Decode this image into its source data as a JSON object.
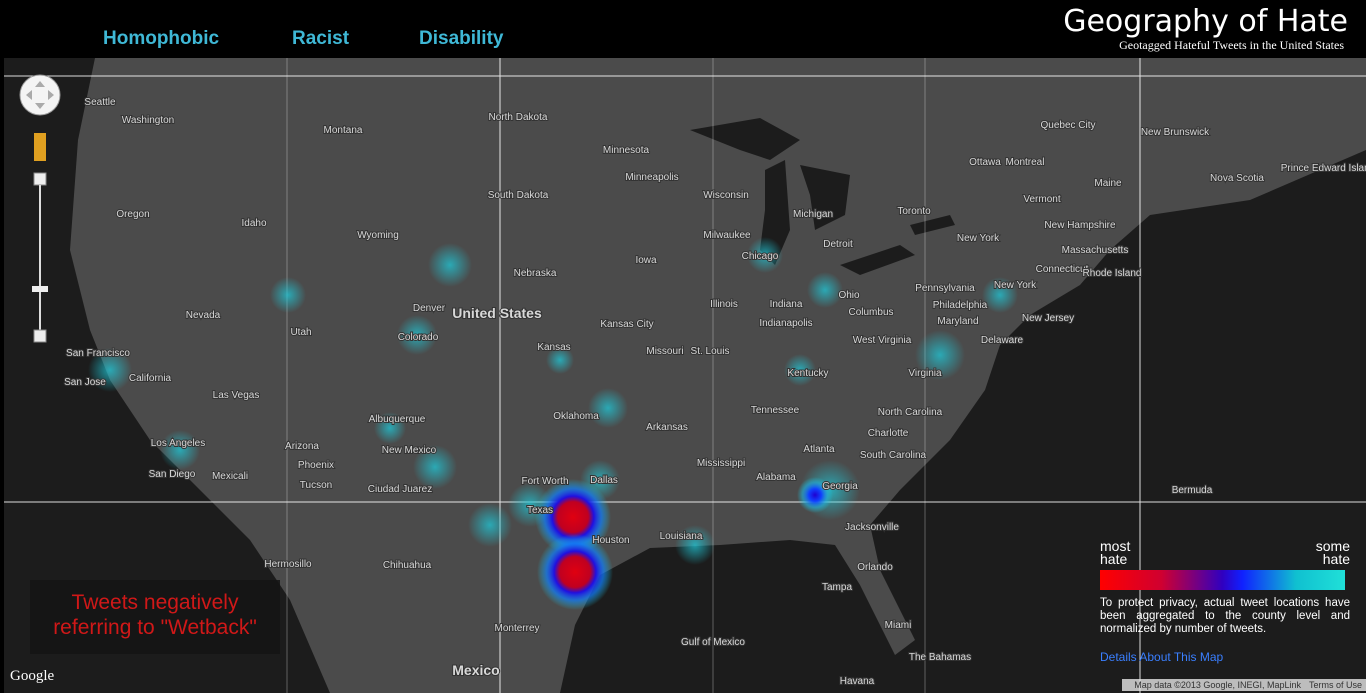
{
  "nav": {
    "tabs": [
      "Homophobic",
      "Racist",
      "Disability"
    ]
  },
  "header": {
    "title": "Geography of Hate",
    "subtitle": "Geotagged Hateful Tweets in the United States"
  },
  "map": {
    "labels": [
      "Seattle",
      "Washington",
      "Montana",
      "North Dakota",
      "Minnesota",
      "Oregon",
      "Idaho",
      "Wyoming",
      "South Dakota",
      "Nebraska",
      "Iowa",
      "Wisconsin",
      "Michigan",
      "Nevada",
      "Utah",
      "Colorado",
      "United States",
      "Kansas",
      "Illinois",
      "Indiana",
      "Ohio",
      "California",
      "Missouri",
      "Kentucky",
      "Virginia",
      "Las Vegas",
      "Arizona",
      "New Mexico",
      "Oklahoma",
      "Arkansas",
      "Tennessee",
      "North Carolina",
      "Los Angeles",
      "Phoenix",
      "Tucson",
      "Texas",
      "Dallas",
      "Fort Worth",
      "Houston",
      "Mississippi",
      "Alabama",
      "Georgia",
      "South Carolina",
      "Louisiana",
      "Jacksonville",
      "Orlando",
      "Tampa",
      "Miami",
      "Chihuahua",
      "Monterrey",
      "Mexico",
      "Gulf of Mexico",
      "The Bahamas",
      "Havana",
      "Bermuda",
      "Toronto",
      "Ottawa",
      "Montreal",
      "Quebec City",
      "New Brunswick",
      "Nova Scotia",
      "Maine",
      "Vermont",
      "New Hampshire",
      "Massachusetts",
      "New York",
      "New York",
      "Pennsylvania",
      "Philadelphia",
      "Maryland",
      "New Jersey",
      "Delaware",
      "Chicago",
      "Detroit",
      "Milwaukee",
      "Minneapolis",
      "Denver",
      "Albuquerque",
      "San Francisco",
      "San Jose",
      "San Diego",
      "Mexicali",
      "Kansas City",
      "St. Louis",
      "Atlanta",
      "Charlotte",
      "Indianapolis",
      "Columbus",
      "Connecticut",
      "Rhode Island",
      "Ciudad Juarez",
      "Hermosillo",
      "Prince Edward Island",
      "West Virginia"
    ],
    "caption": "Tweets negatively referring to \"Wetback\"",
    "attribution": "Google",
    "footer": [
      "Map data ©2013 Google, INEGI, MapLink",
      "Terms of Use"
    ]
  },
  "legend": {
    "most": "most hate",
    "some": "some hate",
    "note": "To protect privacy, actual tweet locations have been aggregated to the county level and normalized by number of tweets.",
    "link": "Details About This Map"
  }
}
